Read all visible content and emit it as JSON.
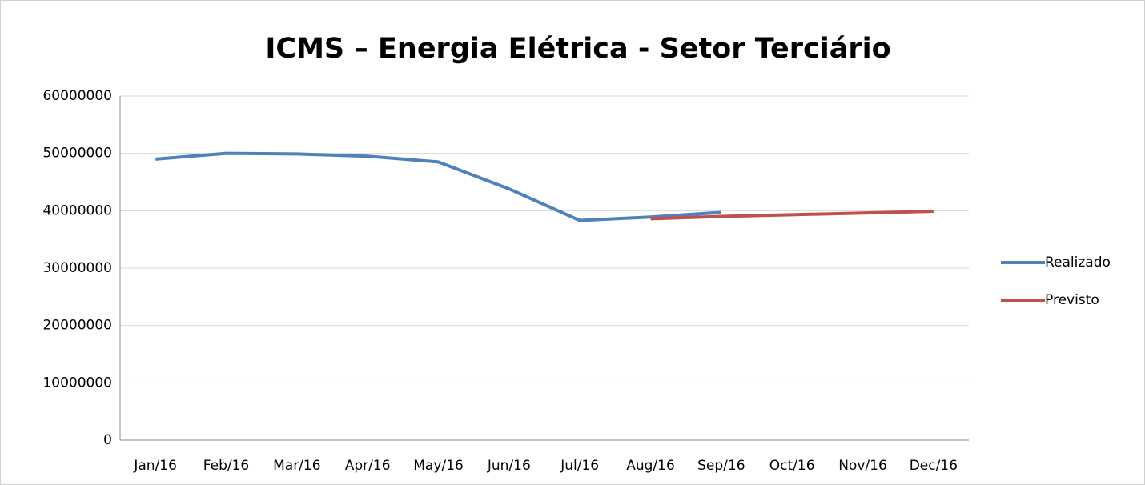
{
  "chart_data": {
    "type": "line",
    "title": "ICMS – Energia Elétrica - Setor Terciário",
    "categories": [
      "Jan/16",
      "Feb/16",
      "Mar/16",
      "Apr/16",
      "May/16",
      "Jun/16",
      "Jul/16",
      "Aug/16",
      "Sep/16",
      "Oct/16",
      "Nov/16",
      "Dec/16"
    ],
    "series": [
      {
        "name": "Realizado",
        "color": "#4f81bd",
        "values": [
          49000000,
          50000000,
          49900000,
          49500000,
          48500000,
          43800000,
          38300000,
          38900000,
          39700000,
          null,
          null,
          null
        ]
      },
      {
        "name": "Previsto",
        "color": "#c0504d",
        "values": [
          null,
          null,
          null,
          null,
          null,
          null,
          null,
          38600000,
          39000000,
          39300000,
          39600000,
          39900000
        ]
      }
    ],
    "ylim": [
      0,
      60000000
    ],
    "yticks": [
      0,
      10000000,
      20000000,
      30000000,
      40000000,
      50000000,
      60000000
    ],
    "grid": true,
    "legend": "right"
  }
}
